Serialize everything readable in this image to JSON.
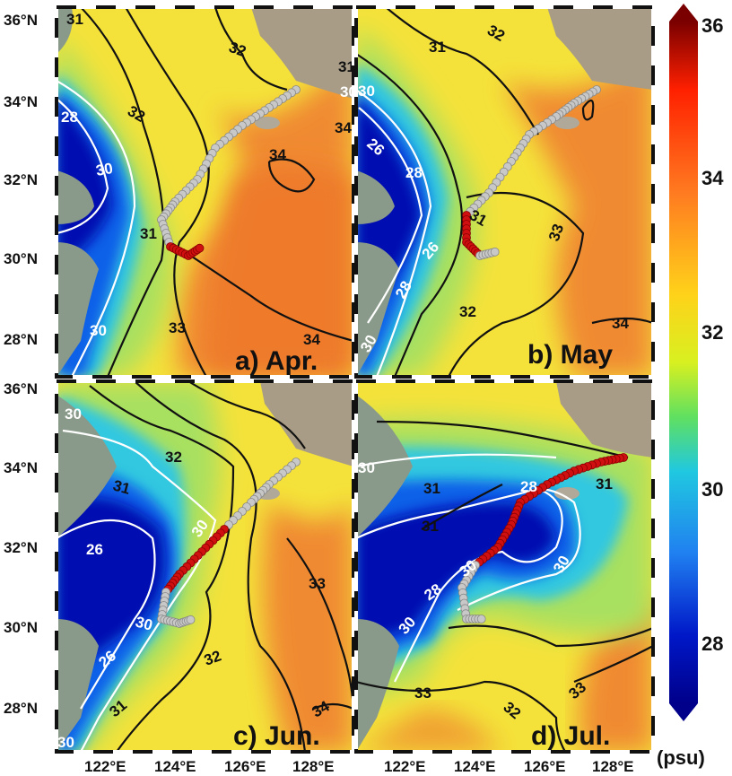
{
  "panels": [
    {
      "id": "a",
      "label": "a) Apr."
    },
    {
      "id": "b",
      "label": "b) May"
    },
    {
      "id": "c",
      "label": "c) Jun."
    },
    {
      "id": "d",
      "label": "d) Jul."
    }
  ],
  "axes": {
    "lat_ticks": [
      "36°N",
      "34°N",
      "32°N",
      "30°N",
      "28°N"
    ],
    "lon_ticks": [
      "122°E",
      "124°E",
      "126°E",
      "128°E"
    ]
  },
  "colorbar": {
    "ticks": [
      "36",
      "34",
      "32",
      "30",
      "28"
    ],
    "unit": "(psu)",
    "colors": [
      "#7a0000",
      "#ff2000",
      "#ff7a20",
      "#ffd21a",
      "#d8f020",
      "#60e060",
      "#20c8e0",
      "#2080f0",
      "#0018c8",
      "#00008a"
    ]
  },
  "contour_labels": {
    "a": [
      "31",
      "32",
      "32",
      "30",
      "34",
      "31",
      "31",
      "30",
      "28",
      "33",
      "34",
      "30",
      "34"
    ],
    "b": [
      "31",
      "32",
      "30",
      "26",
      "28",
      "31",
      "33",
      "26",
      "28",
      "30",
      "32",
      "34"
    ],
    "c": [
      "30",
      "32",
      "31",
      "26",
      "30",
      "30",
      "26",
      "33",
      "32",
      "31",
      "34",
      "30"
    ],
    "d": [
      "30",
      "31",
      "31",
      "28",
      "28",
      "30",
      "30",
      "30",
      "33",
      "32",
      "33",
      "31"
    ]
  },
  "colors": {
    "land": "#8a9a8a",
    "sea_deep": "#f08030",
    "track": "#c8c8c8",
    "track_highlight": "#d01010"
  }
}
